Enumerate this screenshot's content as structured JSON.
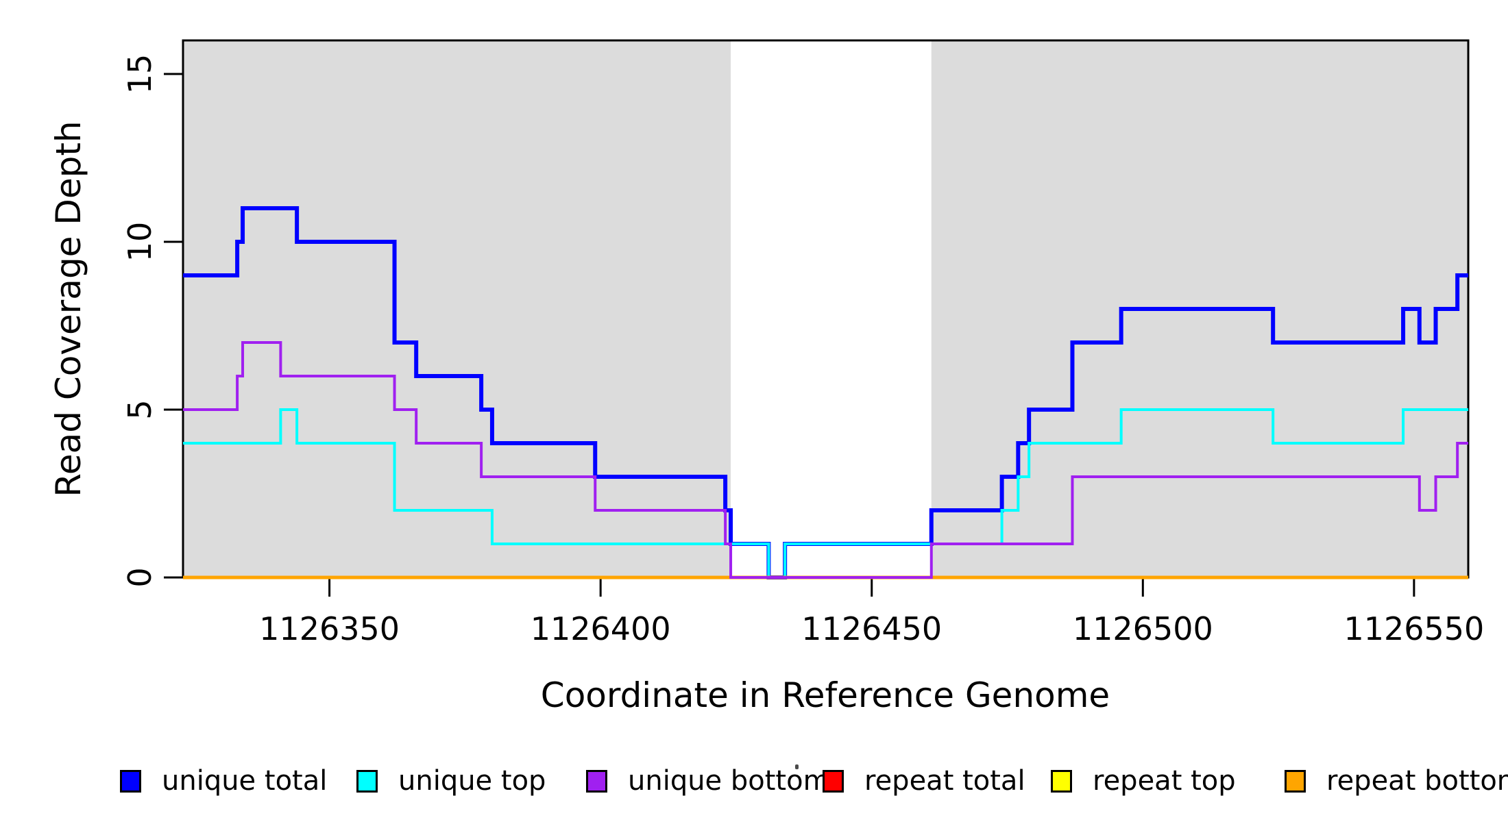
{
  "figure": {
    "x_axis_label": "Coordinate in Reference Genome",
    "y_axis_label": "Read Coverage Depth"
  },
  "legend": {
    "items": [
      {
        "label": "unique total",
        "color": "#0000FF"
      },
      {
        "label": "unique top",
        "color": "#00FFFF"
      },
      {
        "label": "unique bottom",
        "color": "#A020F0"
      },
      {
        "label": "repeat total",
        "color": "#FF0000"
      },
      {
        "label": "repeat top",
        "color": "#FFFF00"
      },
      {
        "label": "repeat bottom",
        "color": "#FFA500"
      }
    ]
  },
  "chart_data": {
    "type": "line",
    "subtype": "step",
    "title": "",
    "xlabel": "Coordinate in Reference Genome",
    "ylabel": "Read Coverage Depth",
    "xlim": [
      1126323,
      1126560
    ],
    "ylim": [
      0,
      16
    ],
    "x_ticks": [
      1126350,
      1126400,
      1126450,
      1126500,
      1126550
    ],
    "y_ticks": [
      0,
      5,
      10,
      15
    ],
    "grid": false,
    "legend_position": "bottom",
    "plot_background": "#FFFFFF",
    "shaded_regions": {
      "color": "#DCDCDC",
      "regions": [
        [
          1126323,
          1126424
        ],
        [
          1126461,
          1126560
        ]
      ]
    },
    "unshaded_gap": [
      1126424,
      1126461
    ],
    "series": [
      {
        "name": "unique total",
        "color": "#0000FF",
        "stroke_width": 6,
        "breakpoints": [
          [
            1126323,
            9
          ],
          [
            1126333,
            10
          ],
          [
            1126334,
            11
          ],
          [
            1126344,
            10
          ],
          [
            1126362,
            7
          ],
          [
            1126366,
            6
          ],
          [
            1126378,
            5
          ],
          [
            1126380,
            4
          ],
          [
            1126399,
            3
          ],
          [
            1126423,
            2
          ],
          [
            1126424,
            1
          ],
          [
            1126431,
            0
          ],
          [
            1126434,
            1
          ],
          [
            1126461,
            2
          ],
          [
            1126474,
            3
          ],
          [
            1126477,
            4
          ],
          [
            1126479,
            5
          ],
          [
            1126487,
            7
          ],
          [
            1126496,
            8
          ],
          [
            1126524,
            7
          ],
          [
            1126548,
            8
          ],
          [
            1126551,
            7
          ],
          [
            1126554,
            8
          ],
          [
            1126558,
            9
          ]
        ]
      },
      {
        "name": "unique top",
        "color": "#00FFFF",
        "stroke_width": 4,
        "breakpoints": [
          [
            1126323,
            4
          ],
          [
            1126341,
            5
          ],
          [
            1126344,
            4
          ],
          [
            1126362,
            2
          ],
          [
            1126380,
            1
          ],
          [
            1126431,
            0
          ],
          [
            1126434,
            1
          ],
          [
            1126474,
            2
          ],
          [
            1126477,
            3
          ],
          [
            1126479,
            4
          ],
          [
            1126496,
            5
          ],
          [
            1126524,
            4
          ],
          [
            1126548,
            5
          ]
        ]
      },
      {
        "name": "repeat total",
        "color": "#FF0000",
        "stroke_width": 4,
        "breakpoints": [
          [
            1126323,
            0
          ]
        ]
      },
      {
        "name": "repeat top",
        "color": "#FFFF00",
        "stroke_width": 4,
        "breakpoints": [
          [
            1126323,
            0
          ]
        ]
      },
      {
        "name": "repeat bottom",
        "color": "#FFA500",
        "stroke_width": 5,
        "breakpoints": [
          [
            1126323,
            0
          ]
        ]
      },
      {
        "name": "unique bottom",
        "color": "#A020F0",
        "stroke_width": 4,
        "breakpoints": [
          [
            1126323,
            5
          ],
          [
            1126333,
            6
          ],
          [
            1126334,
            7
          ],
          [
            1126341,
            6
          ],
          [
            1126362,
            5
          ],
          [
            1126366,
            4
          ],
          [
            1126378,
            3
          ],
          [
            1126399,
            2
          ],
          [
            1126423,
            1
          ],
          [
            1126424,
            0
          ],
          [
            1126461,
            1
          ],
          [
            1126487,
            3
          ],
          [
            1126551,
            2
          ],
          [
            1126554,
            3
          ],
          [
            1126558,
            4
          ]
        ]
      }
    ]
  }
}
